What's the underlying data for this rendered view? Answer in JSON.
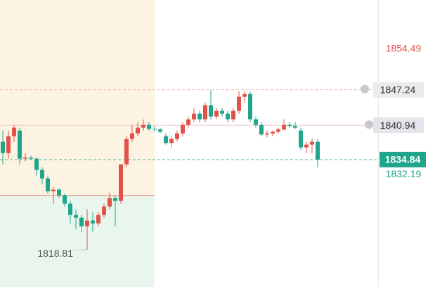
{
  "chart_data": {
    "type": "candlestick",
    "ylim": [
      1812.2,
      1863.2
    ],
    "yticks": [
      1854.49,
      1832.19
    ],
    "alert_lines": [
      1847.24,
      1840.94
    ],
    "last_price": 1834.84,
    "low_label": 1818.81,
    "up_color": "#e0524a",
    "down_color": "#1ea58a",
    "open": [
      1838,
      1836,
      1839,
      1840,
      1835,
      1835.2,
      1835,
      1833,
      1831.5,
      1829.2,
      1829.5,
      1828.5,
      1827,
      1825,
      1824.5,
      1823,
      1824,
      1823.5,
      1825,
      1826.5,
      1828,
      1827.5,
      1834,
      1838.5,
      1839.5,
      1840.5,
      1841,
      1840.3,
      1840.2,
      1839,
      1837.8,
      1838.5,
      1839.5,
      1841,
      1842,
      1843,
      1842,
      1844.5,
      1842.5,
      1843.5,
      1843,
      1842,
      1843.5,
      1846,
      1846.5,
      1842,
      1841,
      1839.3,
      1839.5,
      1839.8,
      1840.2,
      1841,
      1840.8,
      1840,
      1837,
      1837.5,
      1838
    ],
    "high": [
      1840,
      1840,
      1841,
      1840.5,
      1836,
      1835.5,
      1835.3,
      1833.5,
      1832,
      1830,
      1829.8,
      1828.8,
      1827.5,
      1826,
      1825,
      1826,
      1825.5,
      1825.5,
      1827,
      1829,
      1828.5,
      1834,
      1839,
      1841,
      1841.5,
      1842,
      1841.5,
      1840.8,
      1840.5,
      1839.5,
      1839,
      1840,
      1841.5,
      1842.5,
      1844,
      1843.5,
      1845,
      1847.2,
      1844,
      1844,
      1843.5,
      1844,
      1847,
      1847,
      1847,
      1842.5,
      1841.5,
      1840,
      1840,
      1840.5,
      1842,
      1841.5,
      1841.5,
      1840.5,
      1838,
      1838.5,
      1838.5
    ],
    "low": [
      1834,
      1835,
      1838,
      1834,
      1834.5,
      1834.8,
      1832,
      1830.5,
      1828.8,
      1827,
      1828,
      1826.5,
      1823.5,
      1822.5,
      1822,
      1818.81,
      1822,
      1823,
      1824.5,
      1826,
      1823,
      1827,
      1833.5,
      1838,
      1839,
      1840,
      1840,
      1839.8,
      1839.5,
      1837.5,
      1837,
      1838,
      1839,
      1840.5,
      1841.5,
      1841.5,
      1841.5,
      1842,
      1842,
      1842.5,
      1841.5,
      1841.5,
      1843,
      1845,
      1841.5,
      1840.5,
      1839,
      1838.8,
      1839,
      1839.5,
      1840,
      1840.5,
      1840.3,
      1836.5,
      1836,
      1836,
      1833.5
    ],
    "close": [
      1836,
      1839,
      1840.5,
      1835,
      1835.2,
      1835,
      1833,
      1831.5,
      1829.2,
      1829.5,
      1828.5,
      1827,
      1825,
      1824.5,
      1823,
      1824,
      1823.5,
      1825,
      1826.5,
      1828,
      1827.5,
      1834,
      1838.5,
      1839.5,
      1840.5,
      1841,
      1840.3,
      1840.2,
      1839.8,
      1837.8,
      1838.5,
      1839.5,
      1841,
      1842,
      1843,
      1842,
      1844.5,
      1842.5,
      1843.5,
      1843,
      1842,
      1843.5,
      1846,
      1846.5,
      1842,
      1841,
      1839.3,
      1839.5,
      1839.8,
      1840.2,
      1841,
      1840.8,
      1840.5,
      1837,
      1837.5,
      1838,
      1834.84
    ]
  }
}
